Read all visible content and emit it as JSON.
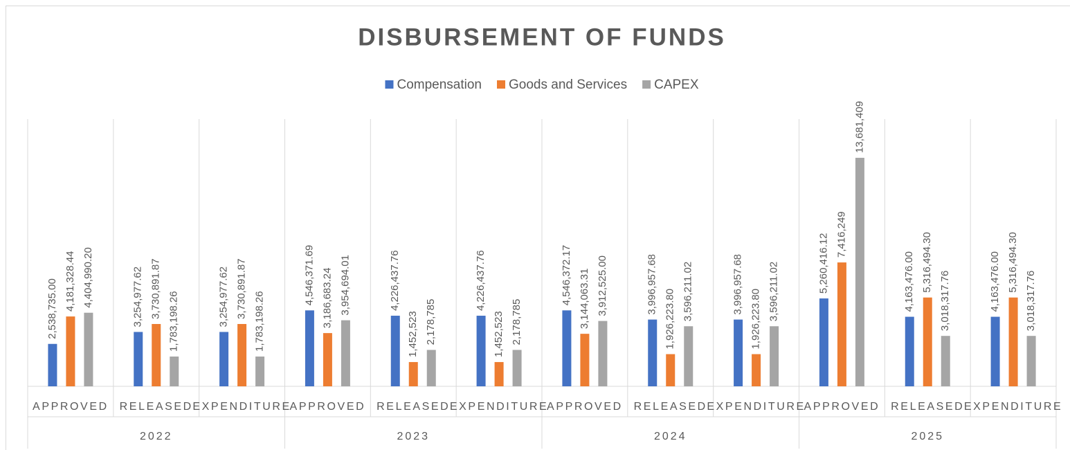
{
  "chart_data": {
    "type": "bar",
    "title": "DISBURSEMENT OF FUNDS",
    "categories": [
      "APPROVED",
      "RELEASED",
      "EXPENDITURE",
      "APPROVED",
      "RELEASED",
      "EXPENDITURE",
      "APPROVED",
      "RELEASED",
      "EXPENDITURE",
      "APPROVED",
      "RELEASED",
      "EXPENDITURE"
    ],
    "category_groups": [
      "2022",
      "2023",
      "2024",
      "2025"
    ],
    "ylim": [
      0,
      16000000
    ],
    "legend": "top",
    "series": [
      {
        "name": "Compensation",
        "color": "#4472c4",
        "values": [
          2538735.0,
          3254977.62,
          3254977.62,
          4546371.69,
          4226437.76,
          4226437.76,
          4546372.17,
          3996957.68,
          3996957.68,
          5260416.12,
          4163476.0,
          4163476.0
        ],
        "value_labels": [
          "2,538,735.00",
          "3,254,977.62",
          "3,254,977.62",
          "4,546,371.69",
          "4,226,437.76",
          "4,226,437.76",
          "4,546,372.17",
          "3,996,957.68",
          "3,996,957.68",
          "5,260,416.12",
          "4,163,476.00",
          "4,163,476.00"
        ]
      },
      {
        "name": "Goods and Services",
        "color": "#ed7d31",
        "values": [
          4181328.44,
          3730891.87,
          3730891.87,
          3186683.24,
          1452523,
          1452523,
          3144063.31,
          1926223.8,
          1926223.8,
          7416249,
          5316494.3,
          5316494.3
        ],
        "value_labels": [
          "4,181,328.44",
          "3,730,891.87",
          "3,730,891.87",
          "3,186,683.24",
          "1,452,523",
          "1,452,523",
          "3,144,063.31",
          "1,926,223.80",
          "1,926,223.80",
          "7,416,249",
          "5,316,494.30",
          "5,316,494.30"
        ]
      },
      {
        "name": "CAPEX",
        "color": "#a5a5a5",
        "values": [
          4404990.2,
          1783198.26,
          1783198.26,
          3954694.01,
          2178785,
          2178785,
          3912525.0,
          3596211.02,
          3596211.02,
          13681409,
          3018317.76,
          3018317.76
        ],
        "value_labels": [
          "4,404,990.20",
          "1,783,198.26",
          "1,783,198.26",
          "3,954,694.01",
          "2,178,785",
          "2,178,785",
          "3,912,525.00",
          "3,596,211.02",
          "3,596,211.02",
          "13,681,409",
          "3,018,317.76",
          "3,018,317.76"
        ]
      }
    ]
  }
}
